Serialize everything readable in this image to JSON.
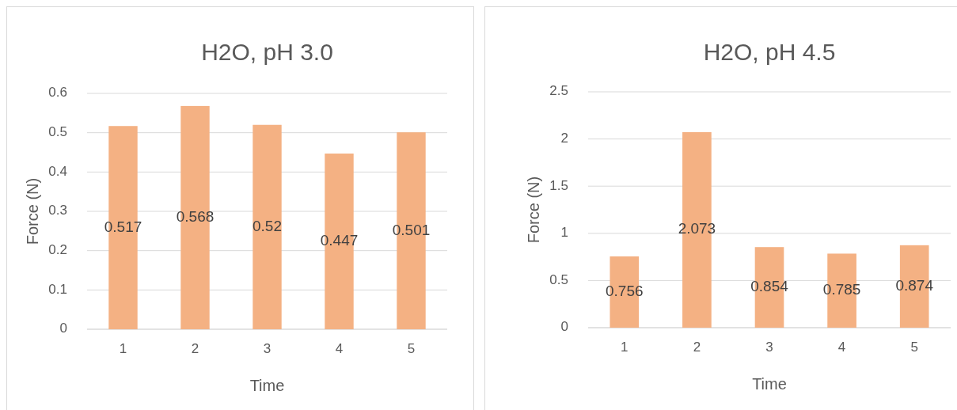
{
  "chart_data": [
    {
      "type": "bar",
      "title": "H2O, pH 3.0",
      "xlabel": "Time",
      "ylabel": "Force (N)",
      "categories": [
        "1",
        "2",
        "3",
        "4",
        "5"
      ],
      "values": [
        0.517,
        0.568,
        0.52,
        0.447,
        0.501
      ],
      "color": "#f4b183",
      "ylim": [
        0,
        0.6
      ],
      "yticks": [
        0,
        0.1,
        0.2,
        0.3,
        0.4,
        0.5,
        0.6
      ],
      "grid": "y",
      "data_labels": true
    },
    {
      "type": "bar",
      "title": "H2O, pH 4.5",
      "xlabel": "Time",
      "ylabel": "Force (N)",
      "categories": [
        "1",
        "2",
        "3",
        "4",
        "5"
      ],
      "values": [
        0.756,
        2.073,
        0.854,
        0.785,
        0.874
      ],
      "color": "#f4b183",
      "ylim": [
        0,
        2.5
      ],
      "yticks": [
        0,
        0.5,
        1,
        1.5,
        2,
        2.5
      ],
      "grid": "y",
      "data_labels": true
    }
  ]
}
